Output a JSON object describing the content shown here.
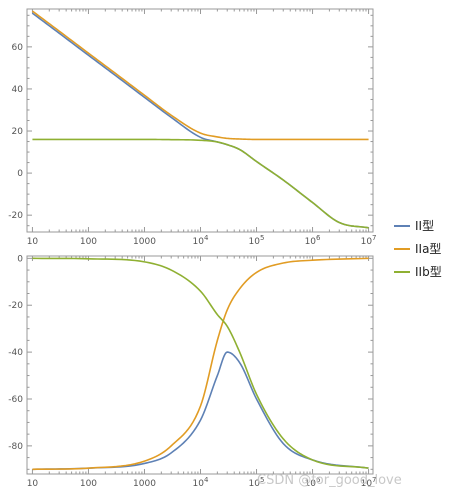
{
  "watermark": "CSDN @for_good_love",
  "chart_data": [
    {
      "type": "line",
      "panel": "magnitude",
      "title": "",
      "xlabel": "",
      "ylabel": "",
      "x_scale": "log",
      "xlim": [
        8,
        12000000
      ],
      "ylim": [
        -28,
        78
      ],
      "x_ticks": [
        {
          "value": 10,
          "label": "10",
          "sup": ""
        },
        {
          "value": 100,
          "label": "100",
          "sup": ""
        },
        {
          "value": 1000,
          "label": "1000",
          "sup": ""
        },
        {
          "value": 10000,
          "label": "10",
          "sup": "4"
        },
        {
          "value": 100000,
          "label": "10",
          "sup": "5"
        },
        {
          "value": 1000000,
          "label": "10",
          "sup": "6"
        },
        {
          "value": 10000000,
          "label": "10",
          "sup": "7"
        }
      ],
      "y_ticks": [
        {
          "value": 60,
          "label": "60"
        },
        {
          "value": 40,
          "label": "40"
        },
        {
          "value": 20,
          "label": "20"
        },
        {
          "value": 0,
          "label": "0"
        },
        {
          "value": -20,
          "label": "-20"
        }
      ],
      "grid": false,
      "series": [
        {
          "name": "II型",
          "color": "#5e81b5",
          "x": [
            10,
            30,
            100,
            300,
            1000,
            3000,
            10000,
            20000,
            30000,
            50000,
            100000,
            300000,
            1000000,
            3000000,
            10000000
          ],
          "y": [
            76,
            66.5,
            56,
            46.5,
            36,
            26.5,
            17,
            14.8,
            13.5,
            11.2,
            5.5,
            -3.3,
            -14,
            -23.5,
            -26
          ]
        },
        {
          "name": "IIa型",
          "color": "#e19c24",
          "x": [
            10,
            30,
            100,
            300,
            1000,
            3000,
            10000,
            20000,
            30000,
            50000,
            100000,
            1000000,
            10000000
          ],
          "y": [
            77,
            67.5,
            57,
            47.5,
            37,
            27.5,
            19,
            17.2,
            16.5,
            16.2,
            16,
            16,
            16
          ]
        },
        {
          "name": "IIb型",
          "color": "#8fb032",
          "x": [
            10,
            1000,
            3000,
            10000,
            20000,
            30000,
            50000,
            100000,
            300000,
            1000000,
            3000000,
            10000000
          ],
          "y": [
            16,
            16,
            15.9,
            15.6,
            14.8,
            13.5,
            11.2,
            5.5,
            -3.3,
            -14,
            -23.5,
            -26
          ]
        }
      ]
    },
    {
      "type": "line",
      "panel": "phase",
      "title": "",
      "xlabel": "",
      "ylabel": "",
      "x_scale": "log",
      "xlim": [
        8,
        12000000
      ],
      "ylim": [
        -92,
        1
      ],
      "x_ticks": [
        {
          "value": 10,
          "label": "10",
          "sup": ""
        },
        {
          "value": 100,
          "label": "100",
          "sup": ""
        },
        {
          "value": 1000,
          "label": "1000",
          "sup": ""
        },
        {
          "value": 10000,
          "label": "10",
          "sup": "4"
        },
        {
          "value": 100000,
          "label": "10",
          "sup": "5"
        },
        {
          "value": 1000000,
          "label": "10",
          "sup": "6"
        },
        {
          "value": 10000000,
          "label": "10",
          "sup": "7"
        }
      ],
      "y_ticks": [
        {
          "value": 0,
          "label": "0"
        },
        {
          "value": -20,
          "label": "-20"
        },
        {
          "value": -40,
          "label": "-40"
        },
        {
          "value": -60,
          "label": "-60"
        },
        {
          "value": -80,
          "label": "-80"
        }
      ],
      "grid": false,
      "series": [
        {
          "name": "II型",
          "color": "#5e81b5",
          "x": [
            10,
            100,
            1000,
            3000,
            10000,
            20000,
            30000,
            50000,
            100000,
            300000,
            1000000,
            10000000
          ],
          "y": [
            -90,
            -89.5,
            -87.5,
            -83,
            -69,
            -50,
            -40,
            -44.5,
            -60,
            -79,
            -86,
            -89.5
          ]
        },
        {
          "name": "IIa型",
          "color": "#e19c24",
          "x": [
            10,
            100,
            1000,
            3000,
            10000,
            20000,
            30000,
            50000,
            100000,
            300000,
            1000000,
            10000000
          ],
          "y": [
            -90,
            -89.5,
            -86.5,
            -80,
            -63,
            -35,
            -22,
            -13,
            -6,
            -2,
            -0.8,
            0
          ]
        },
        {
          "name": "IIb型",
          "color": "#8fb032",
          "x": [
            10,
            100,
            1000,
            3000,
            10000,
            20000,
            30000,
            50000,
            100000,
            300000,
            1000000,
            10000000
          ],
          "y": [
            0,
            -0.2,
            -1.5,
            -5,
            -14,
            -24,
            -29,
            -40,
            -58,
            -77,
            -86,
            -89.5
          ]
        }
      ]
    }
  ],
  "legend": {
    "placement": "right",
    "items": [
      {
        "label": "II型",
        "color": "#5e81b5"
      },
      {
        "label": "IIa型",
        "color": "#e19c24"
      },
      {
        "label": "IIb型",
        "color": "#8fb032"
      }
    ]
  }
}
